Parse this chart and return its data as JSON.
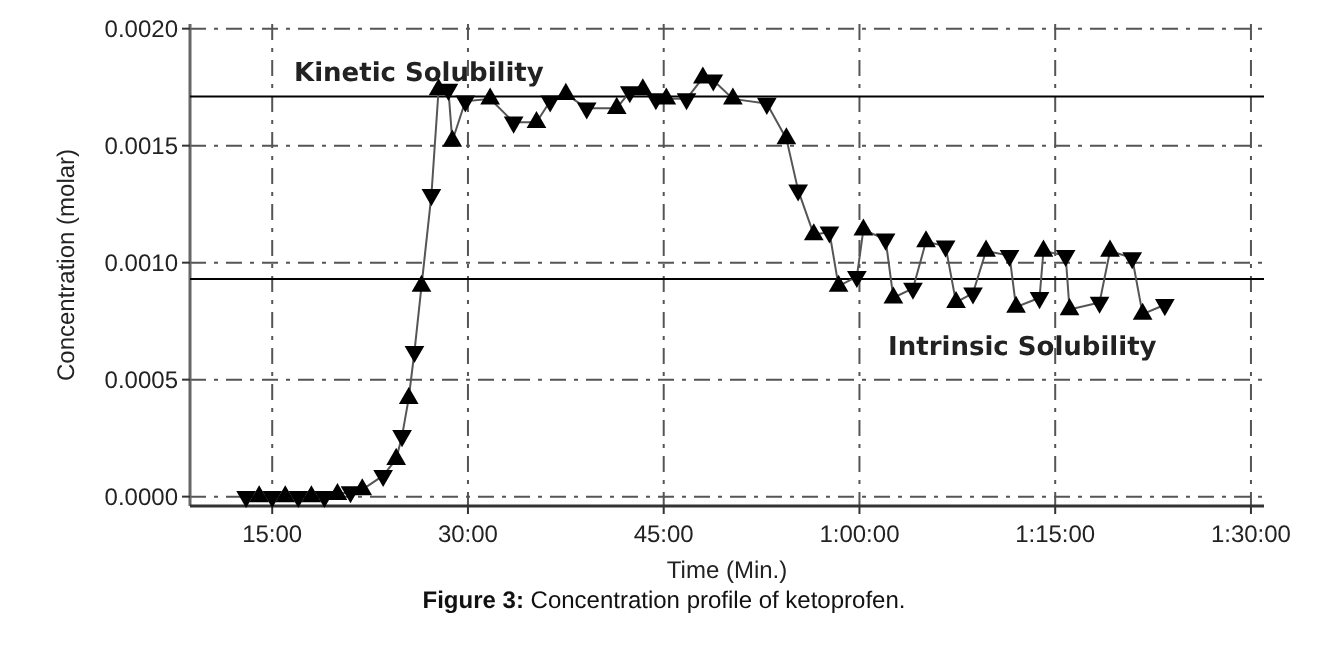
{
  "chart_data": {
    "type": "line",
    "xlabel": "Time (Min.)",
    "ylabel": "Concentration (molar)",
    "annotations": [
      "Figure 3: Concentration profile of ketoprofen."
    ],
    "xlim": [
      8.7,
      91
    ],
    "xticks": [
      {
        "value": 15,
        "label": "15:00"
      },
      {
        "value": 30,
        "label": "30:00"
      },
      {
        "value": 45,
        "label": "45:00"
      },
      {
        "value": 60,
        "label": "1:00:00"
      },
      {
        "value": 75,
        "label": "1:15:00"
      },
      {
        "value": 90,
        "label": "1:30:00"
      }
    ],
    "ylim": [
      -4e-05,
      0.00202
    ],
    "yticks": [
      {
        "value": 0,
        "label": "0.0000"
      },
      {
        "value": 0.0005,
        "label": "0.0005"
      },
      {
        "value": 0.001,
        "label": "0.0010"
      },
      {
        "value": 0.0015,
        "label": "0.0015"
      },
      {
        "value": 0.002,
        "label": "0.0020"
      }
    ],
    "grid": true,
    "marker": "triangle",
    "line_style": "solid",
    "ref_lines": [
      {
        "axis": "y",
        "value": 0.00171,
        "label": "Kinetic Solubility",
        "color": "#000000"
      },
      {
        "axis": "y",
        "value": 0.00093,
        "label": "Intrinsic Solubility",
        "color": "#000000"
      }
    ],
    "series": [
      {
        "color": "#000000",
        "x": [
          13,
          14,
          15,
          16,
          17,
          18,
          19,
          20,
          21,
          21.9,
          23.5,
          24.5,
          24.95,
          25.46,
          25.9,
          26.44,
          27.2,
          27.75,
          28.5,
          28.8,
          29.8,
          31.7,
          33.5,
          35.25,
          36.3,
          37.5,
          39.1,
          41.4,
          42.4,
          43.4,
          44.4,
          45.2,
          46.75,
          48.0,
          48.8,
          50.3,
          52.9,
          54.4,
          55.3,
          56.5,
          57.7,
          58.4,
          59.8,
          60.3,
          62.0,
          62.6,
          64.1,
          65.1,
          66.6,
          67.4,
          68.7,
          69.7,
          71.5,
          72.0,
          73.8,
          74.1,
          75.8,
          76.1,
          78.4,
          79.2,
          80.9,
          81.7,
          83.4
        ],
        "values": [
          0,
          0,
          0,
          0,
          0,
          0,
          0,
          1e-05,
          2e-05,
          3e-05,
          9e-05,
          0.00016,
          0.00026,
          0.00042,
          0.00062,
          0.0009,
          0.00129,
          0.00174,
          0.00174,
          0.00152,
          0.00169,
          0.0017,
          0.0016,
          0.0016,
          0.00169,
          0.00172,
          0.00166,
          0.00166,
          0.00173,
          0.00174,
          0.0017,
          0.0017,
          0.0017,
          0.00179,
          0.00178,
          0.0017,
          0.00168,
          0.00153,
          0.00131,
          0.00112,
          0.00113,
          0.0009,
          0.00094,
          0.00114,
          0.0011,
          0.00085,
          0.00089,
          0.00109,
          0.00107,
          0.00083,
          0.00087,
          0.00105,
          0.00103,
          0.00081,
          0.00085,
          0.00105,
          0.00103,
          0.0008,
          0.00083,
          0.00105,
          0.00102,
          0.00078,
          0.00082
        ]
      }
    ]
  }
}
